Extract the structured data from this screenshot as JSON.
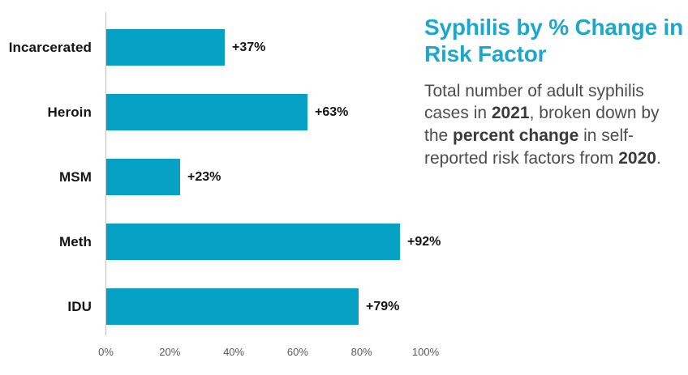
{
  "chart_data": {
    "type": "bar",
    "orientation": "horizontal",
    "title": "Syphilis by % Change in Risk Factor",
    "categories": [
      "Incarcerated",
      "Heroin",
      "MSM",
      "Meth",
      "IDU"
    ],
    "values": [
      37,
      63,
      23,
      92,
      79
    ],
    "value_labels": [
      "+37%",
      "+63%",
      "+23%",
      "+92%",
      "+79%"
    ],
    "x_ticks": [
      "0%",
      "20%",
      "40%",
      "60%",
      "80%",
      "100%"
    ],
    "xlim": [
      0,
      100
    ],
    "grid": false,
    "legend": false,
    "bar_color": "#08a1c6",
    "axis_line_color": "#c3c3c3",
    "tick_color": "#595959",
    "label_color": "#141414"
  },
  "panel": {
    "title": "Syphilis by % Change in Risk Factor",
    "title_color": "#1ba7ce",
    "description_segments": [
      {
        "text": "Total number of adult syphilis cases in ",
        "bold": false
      },
      {
        "text": "2021",
        "bold": true
      },
      {
        "text": ", broken down by the ",
        "bold": false
      },
      {
        "text": "percent change",
        "bold": true
      },
      {
        "text": " in self-reported risk factors from ",
        "bold": false
      },
      {
        "text": "2020",
        "bold": true
      },
      {
        "text": ".",
        "bold": false
      }
    ]
  }
}
